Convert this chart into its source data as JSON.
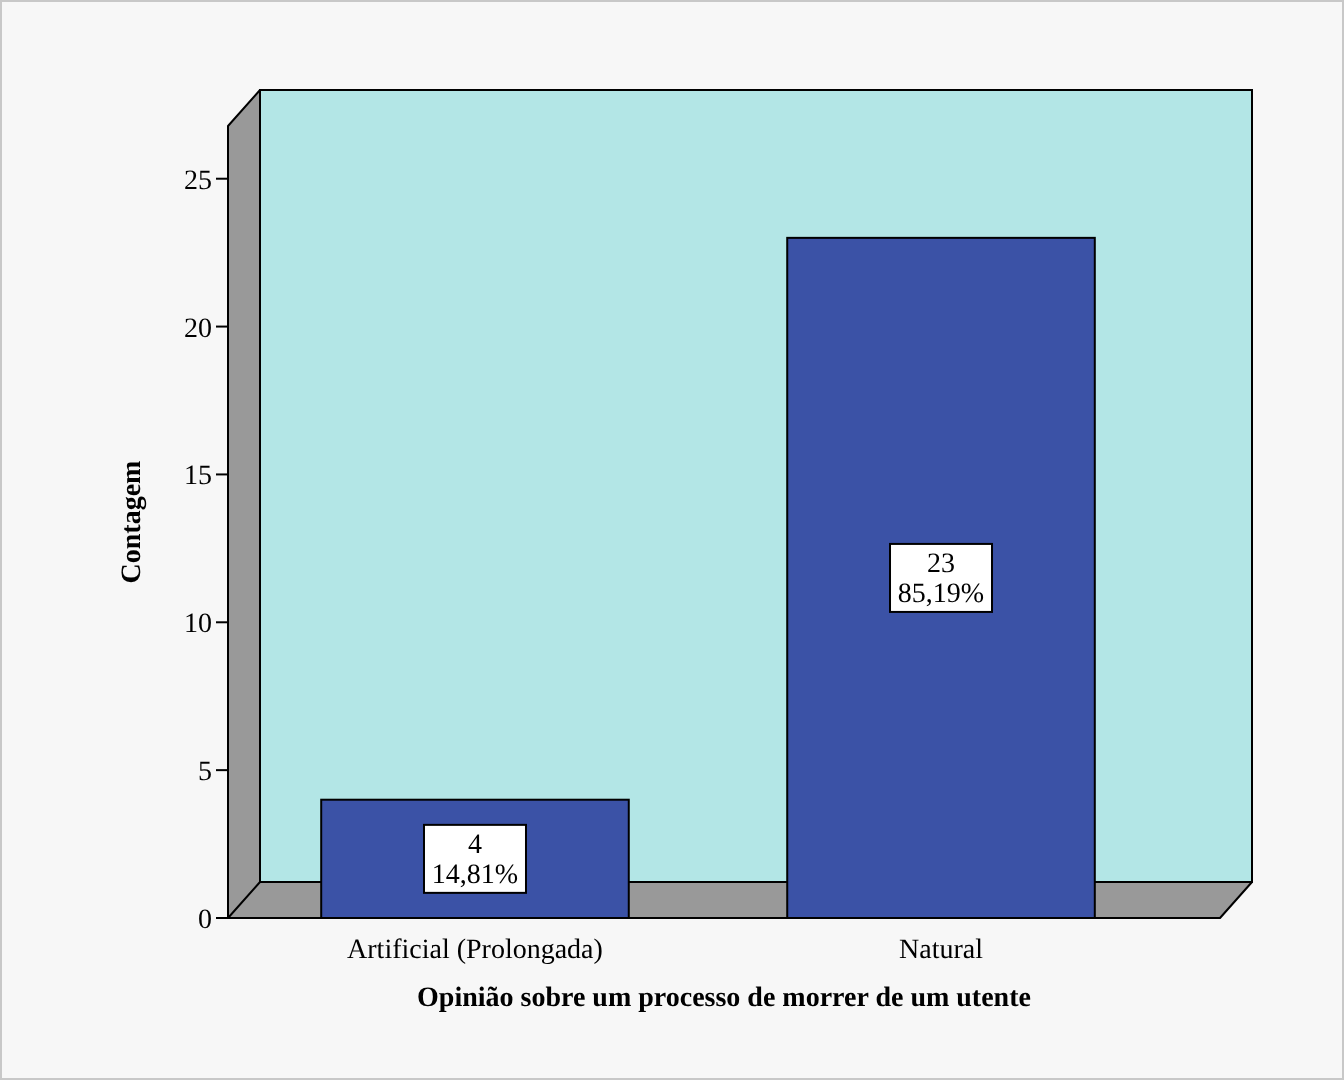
{
  "chart_data": {
    "type": "bar",
    "xlabel": "Opinião sobre um processo de morrer de um utente",
    "ylabel": "Contagem",
    "categories": [
      "Artificial (Prolongada)",
      "Natural"
    ],
    "values": [
      4,
      23
    ],
    "color": "#3b52a6",
    "value_labels": [
      "4\n14,81%",
      "23\n85,19%"
    ],
    "ylim": [
      0,
      28
    ],
    "yticks": [
      0,
      5,
      10,
      15,
      20,
      25
    ],
    "grid": false
  }
}
